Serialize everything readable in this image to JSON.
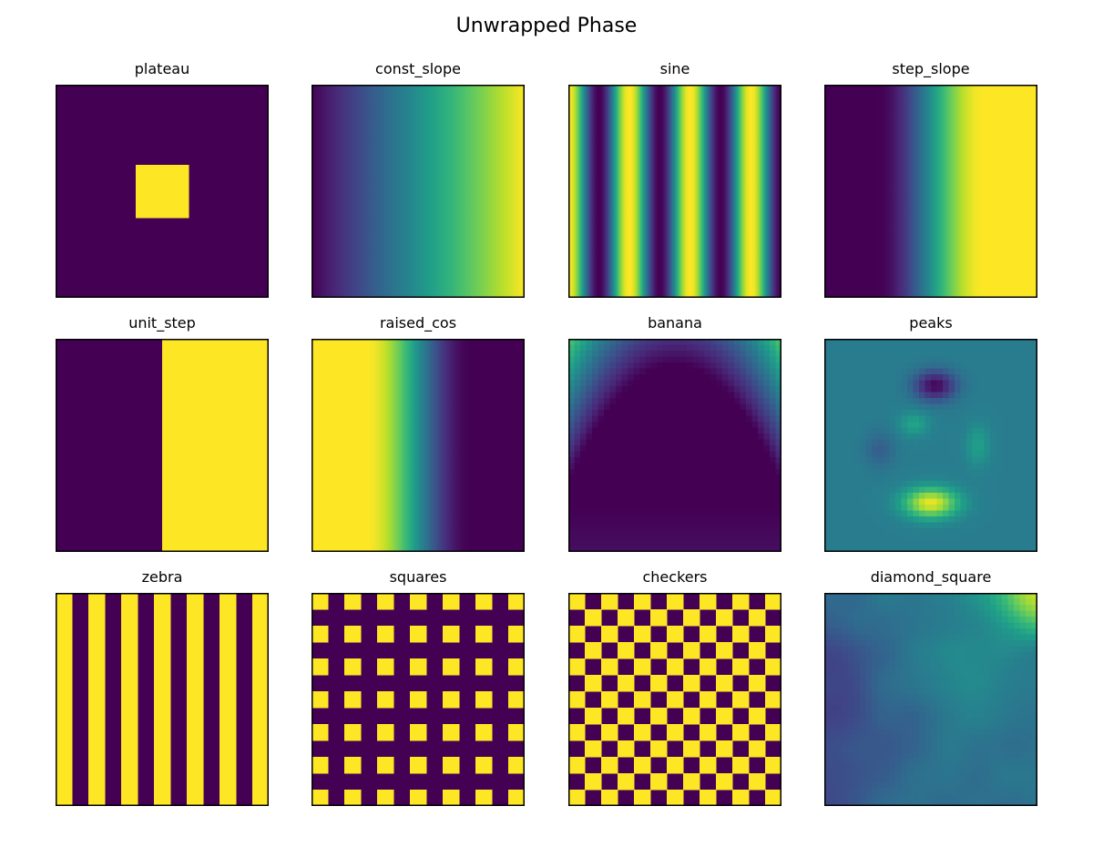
{
  "figure": {
    "title": "Unwrapped Phase",
    "colors": {
      "viridis_low": "#440154",
      "viridis_mid": "#21918c",
      "viridis_high": "#fde725",
      "frame": "#000000"
    }
  },
  "chart_data": [
    {
      "type": "heatmap",
      "title": "plateau",
      "colormap": "viridis",
      "axes": "hidden",
      "pattern": {
        "kind": "plateau",
        "square_from": 0.375,
        "square_to": 0.625
      }
    },
    {
      "type": "heatmap",
      "title": "const_slope",
      "colormap": "viridis",
      "axes": "hidden",
      "pattern": {
        "kind": "const_slope",
        "direction": "left-to-right",
        "range": [
          0,
          1
        ]
      }
    },
    {
      "type": "heatmap",
      "title": "sine",
      "colormap": "viridis",
      "axes": "hidden",
      "pattern": {
        "kind": "sine",
        "direction": "vertical-stripes",
        "cycles": 3.5
      }
    },
    {
      "type": "heatmap",
      "title": "step_slope",
      "colormap": "viridis",
      "axes": "hidden",
      "pattern": {
        "kind": "step_slope",
        "low_until": 0.25,
        "high_from": 0.75
      }
    },
    {
      "type": "heatmap",
      "title": "unit_step",
      "colormap": "viridis",
      "axes": "hidden",
      "pattern": {
        "kind": "unit_step",
        "step_at": 0.5
      }
    },
    {
      "type": "heatmap",
      "title": "raised_cos",
      "colormap": "viridis",
      "axes": "hidden",
      "pattern": {
        "kind": "raised_cos",
        "high_until": 0.25,
        "low_from": 0.75
      }
    },
    {
      "type": "heatmap",
      "title": "banana",
      "colormap": "viridis",
      "axes": "hidden",
      "pattern": {
        "kind": "banana"
      }
    },
    {
      "type": "heatmap",
      "title": "peaks",
      "colormap": "viridis",
      "axes": "hidden",
      "pattern": {
        "kind": "peaks"
      }
    },
    {
      "type": "heatmap",
      "title": "zebra",
      "colormap": "viridis",
      "axes": "hidden",
      "pattern": {
        "kind": "zebra",
        "stripes": 13,
        "first": "high"
      }
    },
    {
      "type": "heatmap",
      "title": "squares",
      "colormap": "viridis",
      "axes": "hidden",
      "pattern": {
        "kind": "squares",
        "cells": 13
      }
    },
    {
      "type": "heatmap",
      "title": "checkers",
      "colormap": "viridis",
      "axes": "hidden",
      "pattern": {
        "kind": "checkers",
        "cells": 13
      }
    },
    {
      "type": "heatmap",
      "title": "diamond_square",
      "colormap": "viridis",
      "axes": "hidden",
      "pattern": {
        "kind": "diamond_square"
      }
    }
  ]
}
